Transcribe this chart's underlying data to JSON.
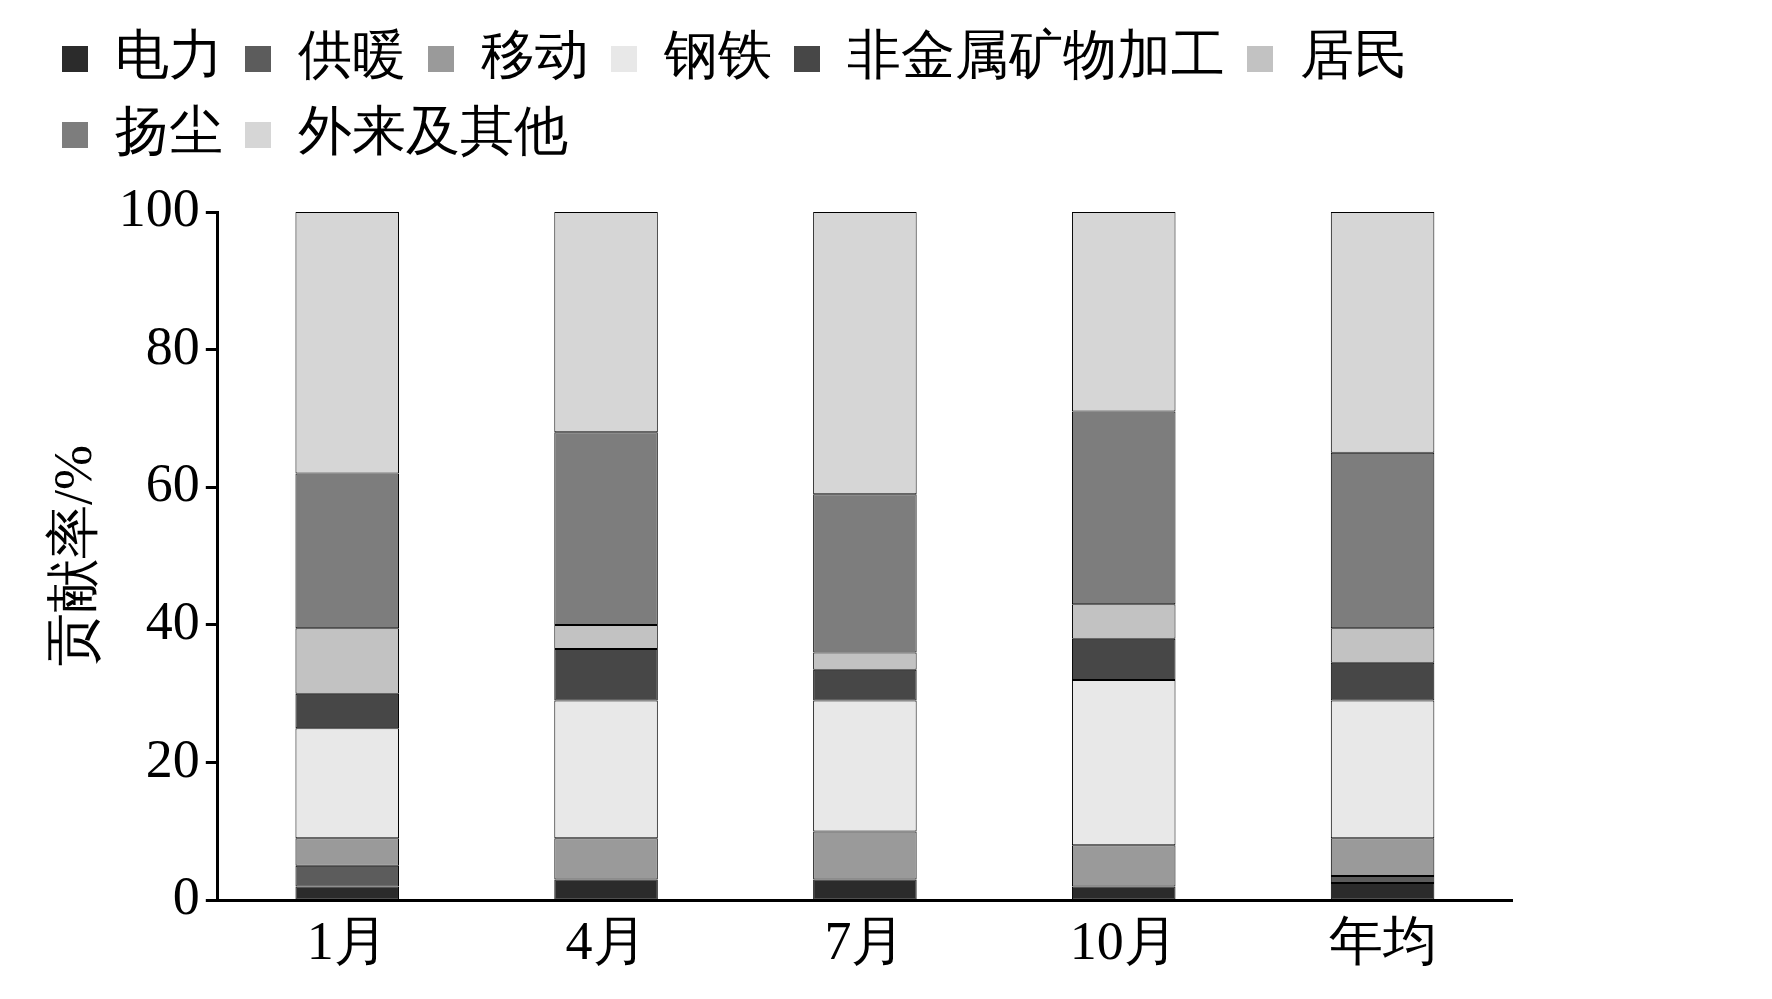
{
  "chart_data": {
    "type": "bar",
    "stacked": true,
    "ylabel": "贡献率/%",
    "categories": [
      "1月",
      "4月",
      "7月",
      "10月",
      "年均"
    ],
    "ylim": [
      0,
      100
    ],
    "yticks": [
      0,
      20,
      40,
      60,
      80,
      100
    ],
    "grid": false,
    "legend": "top",
    "series": [
      {
        "name": "电力",
        "color": "#2b2b2b",
        "values": [
          2,
          3,
          3,
          2,
          2.5
        ]
      },
      {
        "name": "供暖",
        "color": "#5c5c5c",
        "values": [
          3,
          0,
          0,
          0,
          1
        ]
      },
      {
        "name": "移动",
        "color": "#9a9a9a",
        "values": [
          4,
          6,
          7,
          6,
          5.5
        ]
      },
      {
        "name": "钢铁",
        "color": "#e8e8e8",
        "values": [
          16,
          20,
          19,
          24,
          20
        ]
      },
      {
        "name": "非金属矿物加工",
        "color": "#474747",
        "values": [
          5,
          7.5,
          4.5,
          6,
          5.5
        ]
      },
      {
        "name": "居民",
        "color": "#c2c2c2",
        "values": [
          9.5,
          3.5,
          2.5,
          5,
          5
        ]
      },
      {
        "name": "扬尘",
        "color": "#7d7d7d",
        "values": [
          22.5,
          28,
          23,
          28,
          25.5
        ]
      },
      {
        "name": "外来及其他",
        "color": "#d6d6d6",
        "values": [
          38,
          32,
          41,
          29,
          35
        ]
      }
    ]
  }
}
